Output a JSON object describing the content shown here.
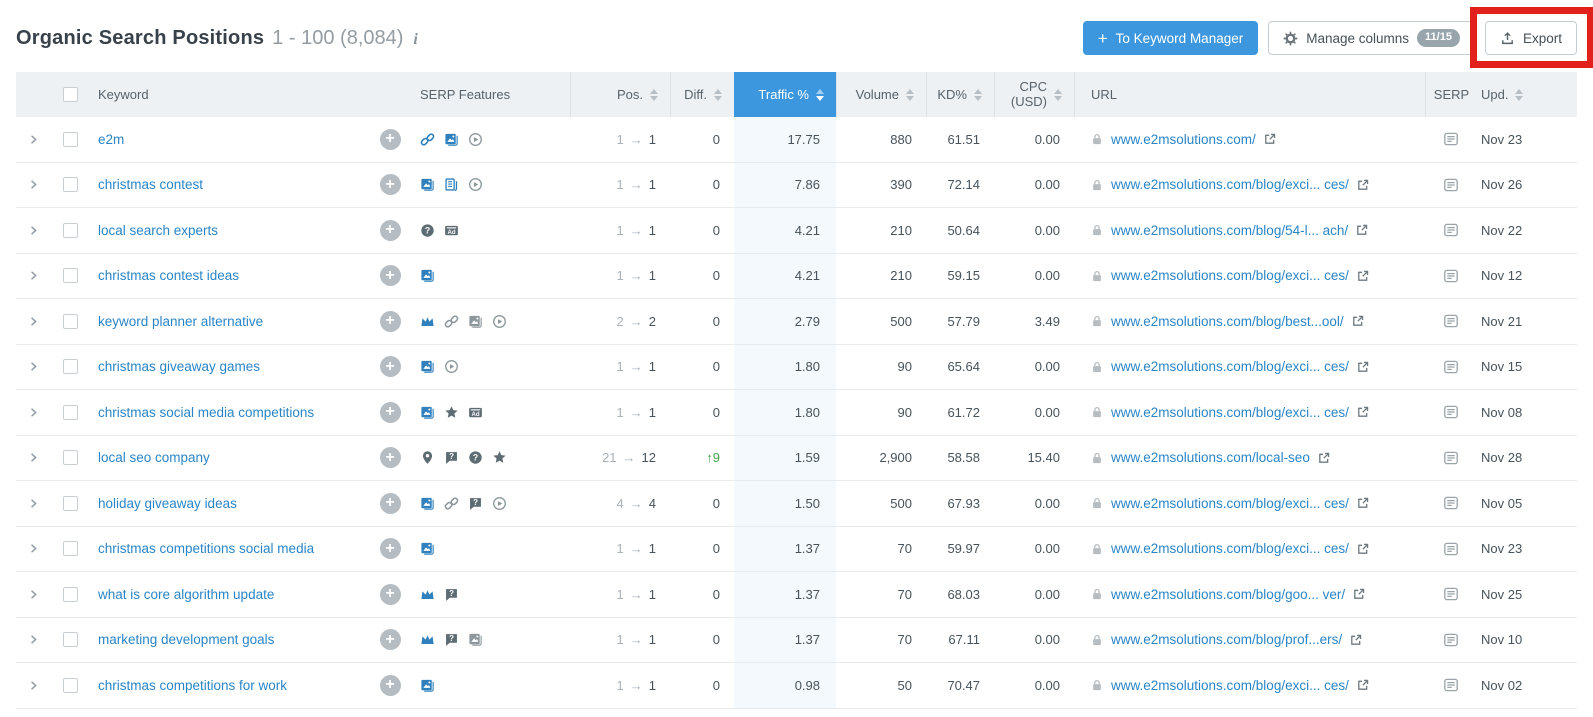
{
  "header": {
    "title": "Organic Search Positions",
    "range": "1 - 100 (8,084)",
    "buttons": {
      "to_keyword_manager": "To Keyword Manager",
      "manage_columns": "Manage columns",
      "manage_columns_badge": "11/15",
      "export": "Export"
    }
  },
  "annotation": {
    "type": "highlight-box",
    "target": "export-button",
    "color": "#e2201c"
  },
  "colors": {
    "accent_blue": "#3c97de",
    "link_blue": "#2a85c7",
    "icon_blue": "#2f80bd",
    "icon_dark": "#5d6b73",
    "icon_gray": "#8d979c",
    "diff_green": "#45a149",
    "header_bg": "#edf1f4",
    "traffic_col_bg": "#f4f9fd"
  },
  "table": {
    "columns": [
      {
        "id": "keyword",
        "label": "Keyword",
        "sortable": false
      },
      {
        "id": "serp_features",
        "label": "SERP Features",
        "sortable": false
      },
      {
        "id": "pos",
        "label": "Pos.",
        "sortable": true
      },
      {
        "id": "diff",
        "label": "Diff.",
        "sortable": true
      },
      {
        "id": "traffic",
        "label": "Traffic %",
        "sortable": true,
        "active": true
      },
      {
        "id": "volume",
        "label": "Volume",
        "sortable": true
      },
      {
        "id": "kd",
        "label": "KD%",
        "sortable": true
      },
      {
        "id": "cpc",
        "label": "CPC (USD)",
        "label_lines": [
          "CPC",
          "(USD)"
        ],
        "sortable": true
      },
      {
        "id": "url",
        "label": "URL",
        "sortable": false
      },
      {
        "id": "serp",
        "label": "SERP",
        "sortable": false
      },
      {
        "id": "upd",
        "label": "Upd.",
        "sortable": true
      }
    ],
    "rows": [
      {
        "keyword": "e2m",
        "features": [
          {
            "icon": "sitelinks",
            "color": "blue"
          },
          {
            "icon": "image-pack",
            "color": "blue"
          },
          {
            "icon": "video",
            "color": "gray"
          }
        ],
        "pos_from": "1",
        "pos_to": "1",
        "diff": "0",
        "diff_positive": false,
        "traffic": "17.75",
        "volume": "880",
        "kd": "61.51",
        "cpc": "0.00",
        "url": "www.e2msolutions.com/",
        "updated": "Nov 23"
      },
      {
        "keyword": "christmas contest",
        "features": [
          {
            "icon": "image-pack",
            "color": "blue"
          },
          {
            "icon": "top-stories",
            "color": "blue"
          },
          {
            "icon": "video",
            "color": "gray"
          }
        ],
        "pos_from": "1",
        "pos_to": "1",
        "diff": "0",
        "diff_positive": false,
        "traffic": "7.86",
        "volume": "390",
        "kd": "72.14",
        "cpc": "0.00",
        "url": "www.e2msolutions.com/blog/exci... ces/",
        "updated": "Nov 26"
      },
      {
        "keyword": "local search experts",
        "features": [
          {
            "icon": "people-also-ask",
            "color": "dark"
          },
          {
            "icon": "ads",
            "color": "dark"
          }
        ],
        "pos_from": "1",
        "pos_to": "1",
        "diff": "0",
        "diff_positive": false,
        "traffic": "4.21",
        "volume": "210",
        "kd": "50.64",
        "cpc": "0.00",
        "url": "www.e2msolutions.com/blog/54-l... ach/",
        "updated": "Nov 22"
      },
      {
        "keyword": "christmas contest ideas",
        "features": [
          {
            "icon": "image-pack",
            "color": "blue"
          }
        ],
        "pos_from": "1",
        "pos_to": "1",
        "diff": "0",
        "diff_positive": false,
        "traffic": "4.21",
        "volume": "210",
        "kd": "59.15",
        "cpc": "0.00",
        "url": "www.e2msolutions.com/blog/exci... ces/",
        "updated": "Nov 12"
      },
      {
        "keyword": "keyword planner alternative",
        "features": [
          {
            "icon": "featured-snippet",
            "color": "blue"
          },
          {
            "icon": "sitelinks",
            "color": "gray"
          },
          {
            "icon": "image-pack",
            "color": "gray"
          },
          {
            "icon": "video",
            "color": "gray"
          }
        ],
        "pos_from": "2",
        "pos_to": "2",
        "diff": "0",
        "diff_positive": false,
        "traffic": "2.79",
        "volume": "500",
        "kd": "57.79",
        "cpc": "3.49",
        "url": "www.e2msolutions.com/blog/best...ool/",
        "updated": "Nov 21"
      },
      {
        "keyword": "christmas giveaway games",
        "features": [
          {
            "icon": "image-pack",
            "color": "blue"
          },
          {
            "icon": "video",
            "color": "gray"
          }
        ],
        "pos_from": "1",
        "pos_to": "1",
        "diff": "0",
        "diff_positive": false,
        "traffic": "1.80",
        "volume": "90",
        "kd": "65.64",
        "cpc": "0.00",
        "url": "www.e2msolutions.com/blog/exci... ces/",
        "updated": "Nov 15"
      },
      {
        "keyword": "christmas social media competitions",
        "features": [
          {
            "icon": "image-pack",
            "color": "blue"
          },
          {
            "icon": "reviews",
            "color": "dark"
          },
          {
            "icon": "ads",
            "color": "dark"
          }
        ],
        "pos_from": "1",
        "pos_to": "1",
        "diff": "0",
        "diff_positive": false,
        "traffic": "1.80",
        "volume": "90",
        "kd": "61.72",
        "cpc": "0.00",
        "url": "www.e2msolutions.com/blog/exci... ces/",
        "updated": "Nov 08"
      },
      {
        "keyword": "local seo company",
        "features": [
          {
            "icon": "local-pack",
            "color": "dark"
          },
          {
            "icon": "faq",
            "color": "dark"
          },
          {
            "icon": "people-also-ask",
            "color": "dark"
          },
          {
            "icon": "reviews",
            "color": "dark"
          }
        ],
        "pos_from": "21",
        "pos_to": "12",
        "diff": "9",
        "diff_positive": true,
        "traffic": "1.59",
        "volume": "2,900",
        "kd": "58.58",
        "cpc": "15.40",
        "url": "www.e2msolutions.com/local-seo",
        "updated": "Nov 28"
      },
      {
        "keyword": "holiday giveaway ideas",
        "features": [
          {
            "icon": "image-pack",
            "color": "blue"
          },
          {
            "icon": "sitelinks",
            "color": "gray"
          },
          {
            "icon": "faq",
            "color": "dark"
          },
          {
            "icon": "video",
            "color": "gray"
          }
        ],
        "pos_from": "4",
        "pos_to": "4",
        "diff": "0",
        "diff_positive": false,
        "traffic": "1.50",
        "volume": "500",
        "kd": "67.93",
        "cpc": "0.00",
        "url": "www.e2msolutions.com/blog/exci... ces/",
        "updated": "Nov 05"
      },
      {
        "keyword": "christmas competitions social media",
        "features": [
          {
            "icon": "image-pack",
            "color": "blue"
          }
        ],
        "pos_from": "1",
        "pos_to": "1",
        "diff": "0",
        "diff_positive": false,
        "traffic": "1.37",
        "volume": "70",
        "kd": "59.97",
        "cpc": "0.00",
        "url": "www.e2msolutions.com/blog/exci... ces/",
        "updated": "Nov 23"
      },
      {
        "keyword": "what is core algorithm update",
        "features": [
          {
            "icon": "featured-snippet",
            "color": "blue"
          },
          {
            "icon": "faq",
            "color": "dark"
          }
        ],
        "pos_from": "1",
        "pos_to": "1",
        "diff": "0",
        "diff_positive": false,
        "traffic": "1.37",
        "volume": "70",
        "kd": "68.03",
        "cpc": "0.00",
        "url": "www.e2msolutions.com/blog/goo... ver/",
        "updated": "Nov 25"
      },
      {
        "keyword": "marketing development goals",
        "features": [
          {
            "icon": "featured-snippet",
            "color": "blue"
          },
          {
            "icon": "faq",
            "color": "dark"
          },
          {
            "icon": "image-pack",
            "color": "gray"
          }
        ],
        "pos_from": "1",
        "pos_to": "1",
        "diff": "0",
        "diff_positive": false,
        "traffic": "1.37",
        "volume": "70",
        "kd": "67.11",
        "cpc": "0.00",
        "url": "www.e2msolutions.com/blog/prof...ers/",
        "updated": "Nov 10"
      },
      {
        "keyword": "christmas competitions for work",
        "features": [
          {
            "icon": "image-pack",
            "color": "blue"
          }
        ],
        "pos_from": "1",
        "pos_to": "1",
        "diff": "0",
        "diff_positive": false,
        "traffic": "0.98",
        "volume": "50",
        "kd": "70.47",
        "cpc": "0.00",
        "url": "www.e2msolutions.com/blog/exci... ces/",
        "updated": "Nov 02"
      }
    ]
  }
}
